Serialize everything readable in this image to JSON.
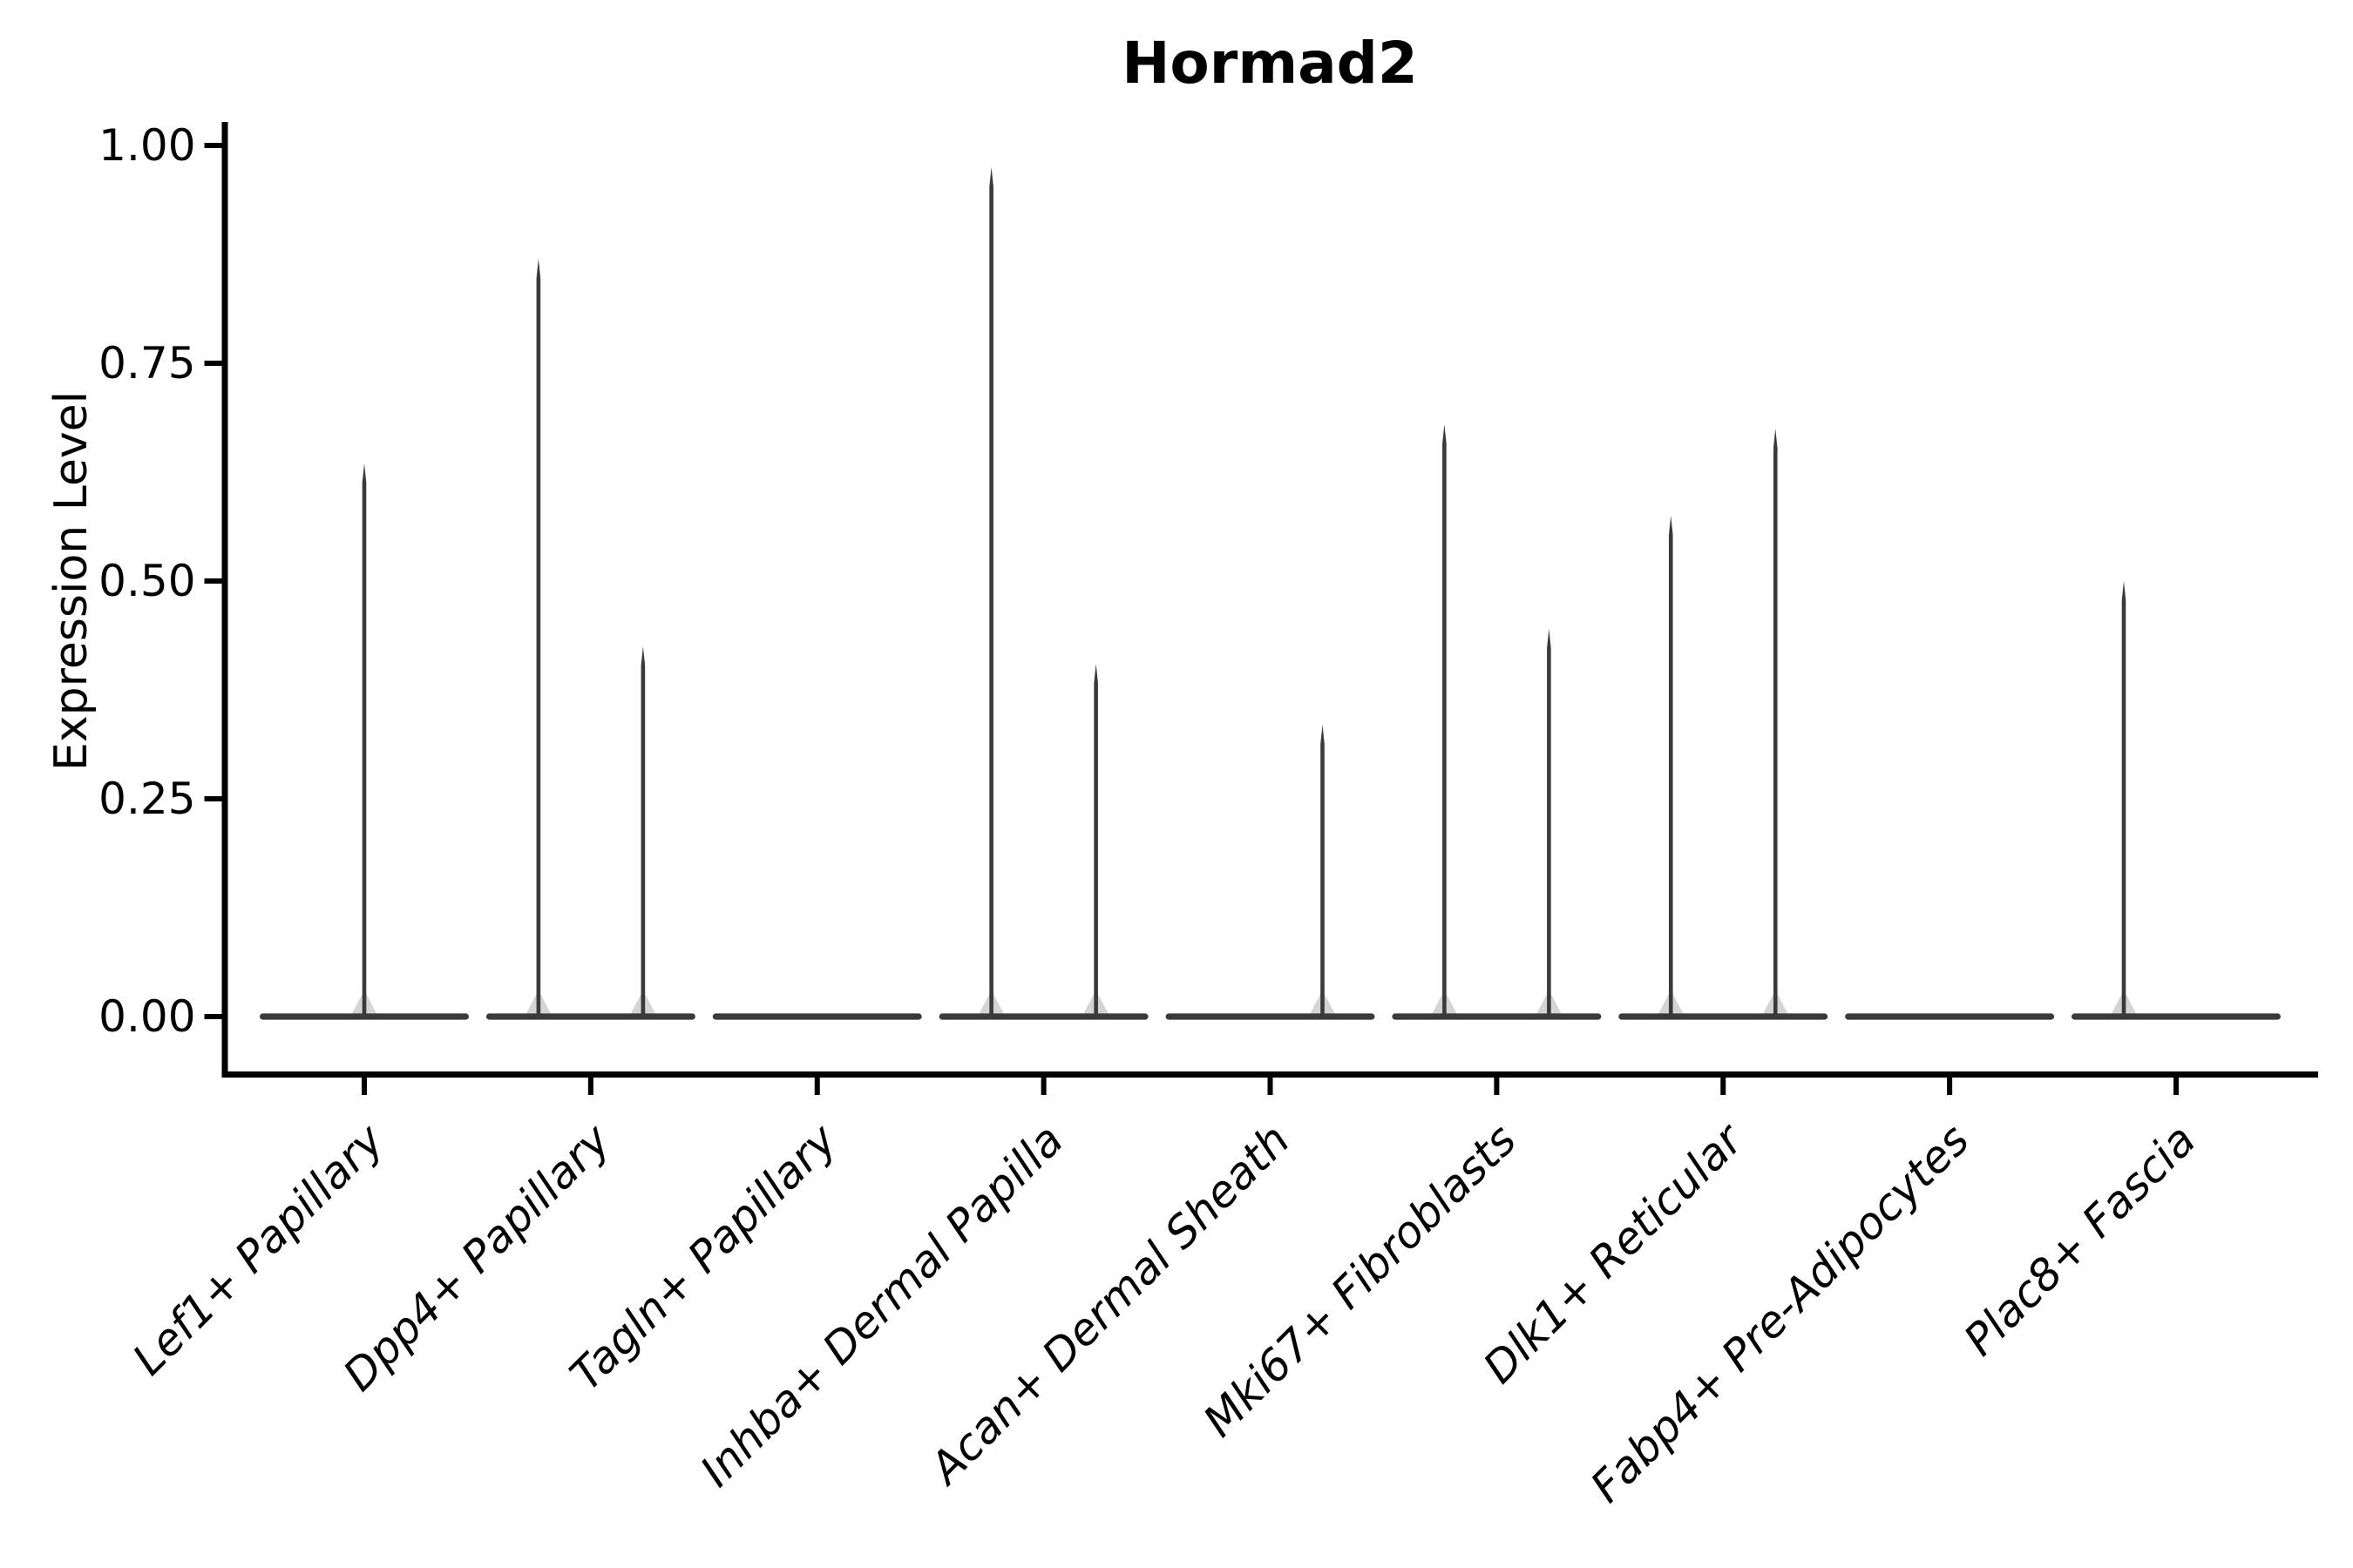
{
  "title": "Hormad2",
  "y_axis_title": "Expression Level",
  "colors": {
    "background": "#ffffff",
    "axis": "#000000",
    "text": "#000000",
    "violin": "#3a3a3a"
  },
  "chart_data": {
    "type": "violin",
    "title": "Hormad2",
    "xlabel": "",
    "ylabel": "Expression Level",
    "ylim": [
      0,
      1.0
    ],
    "grid": false,
    "legend_position": "none",
    "baseline_value": 0.0,
    "yticks": [
      {
        "value": 1.0,
        "label": "1.00"
      },
      {
        "value": 0.75,
        "label": "0.75"
      },
      {
        "value": 0.5,
        "label": "0.50"
      },
      {
        "value": 0.25,
        "label": "0.25"
      },
      {
        "value": 0.0,
        "label": "0.00"
      }
    ],
    "categories": [
      {
        "label": "Lef1+ Papillary",
        "spikes": [
          {
            "position": "center",
            "value": 0.635
          }
        ]
      },
      {
        "label": "Dpp4+ Papillary",
        "spikes": [
          {
            "position": "left",
            "value": 0.87
          },
          {
            "position": "right",
            "value": 0.425
          }
        ]
      },
      {
        "label": "Tagln+ Papillary",
        "spikes": []
      },
      {
        "label": "Inhba+ Dermal Papilla",
        "spikes": [
          {
            "position": "left",
            "value": 0.975
          },
          {
            "position": "right",
            "value": 0.405
          }
        ]
      },
      {
        "label": "Acan+ Dermal Sheath",
        "spikes": [
          {
            "position": "right",
            "value": 0.335
          }
        ]
      },
      {
        "label": "Mki67+ Fibroblasts",
        "spikes": [
          {
            "position": "left",
            "value": 0.68
          },
          {
            "position": "right",
            "value": 0.445
          }
        ]
      },
      {
        "label": "Dlk1+ Reticular",
        "spikes": [
          {
            "position": "left",
            "value": 0.575
          },
          {
            "position": "right",
            "value": 0.675
          }
        ]
      },
      {
        "label": "Fabp4+ Pre-Adipocytes",
        "spikes": []
      },
      {
        "label": "Plac8+ Fascia",
        "spikes": [
          {
            "position": "left",
            "value": 0.5
          }
        ]
      }
    ]
  }
}
